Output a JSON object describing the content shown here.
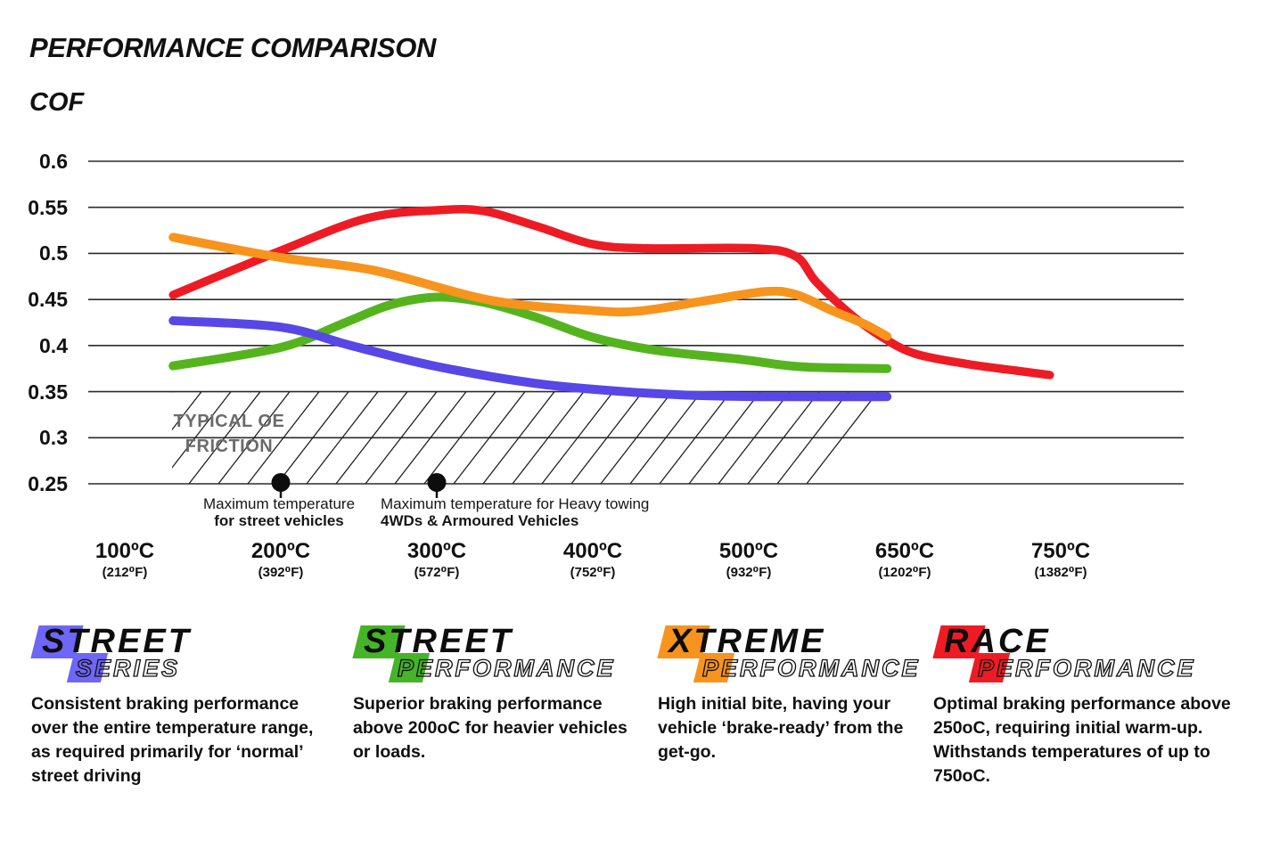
{
  "page_title": "PERFORMANCE COMPARISON",
  "y_axis_title": "COF",
  "chart_data": {
    "type": "line",
    "title": "PERFORMANCE COMPARISON",
    "ylabel": "COF",
    "grid": true,
    "ylim": [
      0.25,
      0.6
    ],
    "yticks": [
      0.6,
      0.55,
      0.5,
      0.45,
      0.4,
      0.35,
      0.3,
      0.25
    ],
    "ytick_labels": [
      "0.6",
      "0.55",
      "0.5",
      "0.45",
      "0.4",
      "0.35",
      "0.3",
      "0.25"
    ],
    "x_categories": [
      {
        "temp": 100,
        "celsius": "100ºC",
        "fahrenheit": "(212⁰F)"
      },
      {
        "temp": 200,
        "celsius": "200ºC",
        "fahrenheit": "(392⁰F)"
      },
      {
        "temp": 300,
        "celsius": "300ºC",
        "fahrenheit": "(572⁰F)"
      },
      {
        "temp": 400,
        "celsius": "400ºC",
        "fahrenheit": "(752⁰F)"
      },
      {
        "temp": 500,
        "celsius": "500ºC",
        "fahrenheit": "(932⁰F)"
      },
      {
        "temp": 650,
        "celsius": "650ºC",
        "fahrenheit": "(1202⁰F)"
      },
      {
        "temp": 750,
        "celsius": "750ºC",
        "fahrenheit": "(1382⁰F)"
      }
    ],
    "series": [
      {
        "name": "Street Series",
        "color": "#5747e6",
        "points": [
          [
            131,
            0.427
          ],
          [
            200,
            0.42
          ],
          [
            245,
            0.4
          ],
          [
            298,
            0.378
          ],
          [
            363,
            0.359
          ],
          [
            420,
            0.35
          ],
          [
            465,
            0.346
          ],
          [
            520,
            0.3445
          ],
          [
            633,
            0.3445
          ]
        ]
      },
      {
        "name": "Street Performance",
        "color": "#55b41e",
        "points": [
          [
            131,
            0.378
          ],
          [
            200,
            0.398
          ],
          [
            240,
            0.424
          ],
          [
            270,
            0.444
          ],
          [
            300,
            0.4525
          ],
          [
            330,
            0.447
          ],
          [
            365,
            0.43
          ],
          [
            400,
            0.409
          ],
          [
            440,
            0.395
          ],
          [
            495,
            0.385
          ],
          [
            550,
            0.377
          ],
          [
            633,
            0.375
          ]
        ]
      },
      {
        "name": "Xtreme Performance",
        "color": "#f7941d",
        "points": [
          [
            131,
            0.5175
          ],
          [
            200,
            0.4955
          ],
          [
            260,
            0.4815
          ],
          [
            335,
            0.449
          ],
          [
            400,
            0.438
          ],
          [
            430,
            0.4375
          ],
          [
            470,
            0.448
          ],
          [
            515,
            0.4585
          ],
          [
            545,
            0.4555
          ],
          [
            580,
            0.438
          ],
          [
            610,
            0.424
          ],
          [
            633,
            0.41
          ]
        ]
      },
      {
        "name": "Race Performance",
        "color": "#ed1c24",
        "points": [
          [
            131,
            0.455
          ],
          [
            200,
            0.503
          ],
          [
            255,
            0.538
          ],
          [
            300,
            0.5468
          ],
          [
            330,
            0.546
          ],
          [
            365,
            0.529
          ],
          [
            400,
            0.51
          ],
          [
            435,
            0.5055
          ],
          [
            505,
            0.5055
          ],
          [
            545,
            0.497
          ],
          [
            565,
            0.469
          ],
          [
            600,
            0.432
          ],
          [
            630,
            0.408
          ],
          [
            657,
            0.391
          ],
          [
            690,
            0.38
          ],
          [
            725,
            0.372
          ],
          [
            743,
            0.368
          ]
        ]
      }
    ],
    "oe_band": {
      "label_line1": "TYPICAL OE",
      "label_line2": "FRICTION",
      "cof_range": [
        0.25,
        0.35
      ],
      "temp_range": [
        130,
        650
      ]
    },
    "markers": [
      {
        "temp": 200,
        "label_line1": "Maximum temperature",
        "label_line2": "for street vehicles"
      },
      {
        "temp": 300,
        "label_line1": "Maximum temperature for Heavy towing",
        "label_line2": "4WDs & Armoured Vehicles"
      }
    ]
  },
  "products": [
    {
      "name": "Street Series",
      "word1": "STREET",
      "word2": "SERIES",
      "badge_color": "#6e66f6",
      "description": "Consistent braking performance over the entire temperature range, as required primarily for ‘normal’ street driving"
    },
    {
      "name": "Street Performance",
      "word1": "STREET",
      "word2": "PERFORMANCE",
      "badge_color": "#46b428",
      "description": "Superior braking performance above 200oC for heavier vehicles or loads."
    },
    {
      "name": "Xtreme Performance",
      "word1": "XTREME",
      "word2": "PERFORMANCE",
      "badge_color": "#f7941d",
      "description": "High initial bite, having your vehicle ‘brake-ready’ from the get-go."
    },
    {
      "name": "Race Performance",
      "word1": "RACE",
      "word2": "PERFORMANCE",
      "badge_color": "#ed1c24",
      "description": "Optimal braking performance above 250oC, requiring initial warm-up. Withstands temperatures of up to 750oC."
    }
  ]
}
